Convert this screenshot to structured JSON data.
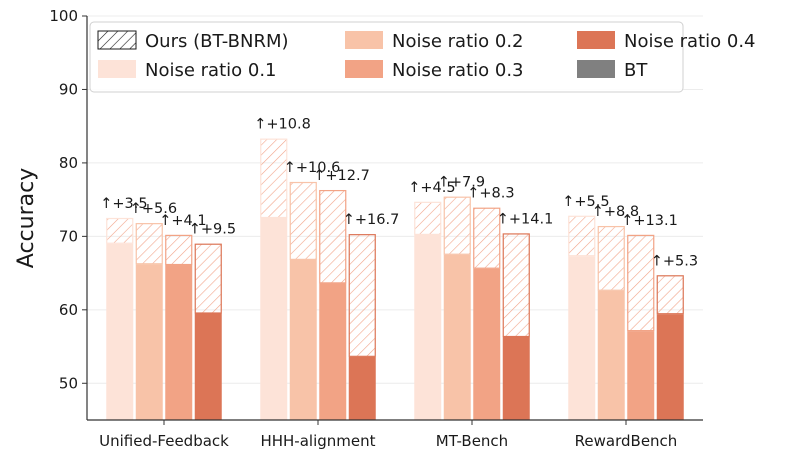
{
  "chart_data": {
    "type": "bar",
    "ylabel": "Accuracy",
    "ylim": [
      45,
      100
    ],
    "yticks": [
      50,
      60,
      70,
      80,
      90,
      100
    ],
    "categories": [
      "Unified-Feedback",
      "HHH-alignment",
      "MT-Bench",
      "RewardBench"
    ],
    "series": [
      {
        "name": "Noise ratio 0.1",
        "color": "#fde3d8",
        "baseline": [
          69.0,
          72.5,
          70.2,
          67.3
        ],
        "ours": [
          72.5,
          83.3,
          74.7,
          72.8
        ],
        "delta_labels": [
          "+3.5",
          "+10.8",
          "+4.5",
          "+5.5"
        ]
      },
      {
        "name": "Noise ratio 0.2",
        "color": "#f8c3a8",
        "baseline": [
          66.2,
          66.8,
          67.5,
          62.6
        ],
        "ours": [
          71.8,
          77.4,
          75.4,
          71.4
        ],
        "delta_labels": [
          "+5.6",
          "+10.6",
          "+7.9",
          "+8.8"
        ]
      },
      {
        "name": "Noise ratio 0.3",
        "color": "#f2a385",
        "baseline": [
          66.1,
          63.6,
          65.6,
          57.1
        ],
        "ours": [
          70.2,
          76.3,
          73.9,
          70.2
        ],
        "delta_labels": [
          "+4.1",
          "+12.7",
          "+8.3",
          "+13.1"
        ]
      },
      {
        "name": "Noise ratio 0.4",
        "color": "#dc7556",
        "baseline": [
          59.5,
          53.6,
          56.3,
          59.4
        ],
        "ours": [
          69.0,
          70.3,
          70.4,
          64.7
        ],
        "delta_labels": [
          "+9.5",
          "+16.7",
          "+14.1",
          "+5.3"
        ]
      }
    ],
    "legend": {
      "placement": "top",
      "entries": [
        {
          "label": "Ours (BT-BNRM)",
          "style": "hatch"
        },
        {
          "label": "Noise ratio 0.2",
          "style": "solid",
          "color": "#f8c3a8"
        },
        {
          "label": "Noise ratio 0.4",
          "style": "solid",
          "color": "#dc7556"
        },
        {
          "label": "Noise ratio 0.1",
          "style": "solid",
          "color": "#fde3d8"
        },
        {
          "label": "Noise ratio 0.3",
          "style": "solid",
          "color": "#f2a385"
        },
        {
          "label": "BT",
          "style": "solid",
          "color": "#808080"
        }
      ]
    },
    "arrow_glyph": "↑"
  }
}
